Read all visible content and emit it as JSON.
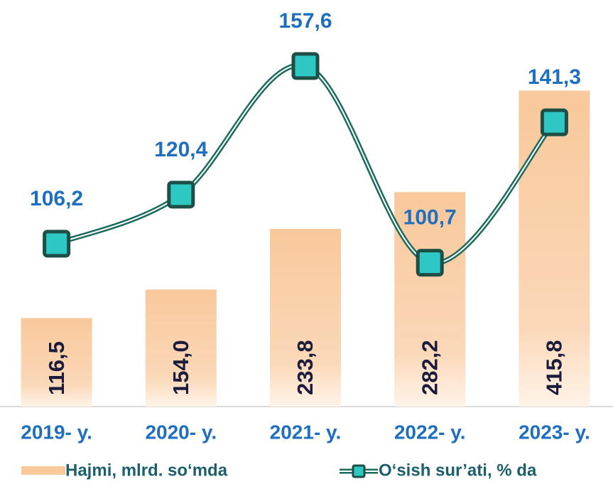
{
  "chart_data": {
    "type": "combo",
    "categories": [
      "2019- y.",
      "2020- y.",
      "2021- y.",
      "2022- y.",
      "2023- y."
    ],
    "series": [
      {
        "name": "Hajmi, mlrd. so‘mda",
        "type": "bar",
        "color": "#f9c89b",
        "values": [
          116.5,
          154.0,
          233.8,
          282.2,
          415.8
        ],
        "value_labels": [
          "116,5",
          "154,0",
          "233,8",
          "282,2",
          "415,8"
        ]
      },
      {
        "name": "O‘sish sur’ati, % da",
        "type": "line",
        "axis": "y2",
        "color": "#1d6b5f",
        "marker_color": "#2ec8c4",
        "values": [
          106.2,
          120.4,
          157.6,
          100.7,
          141.3
        ],
        "value_labels": [
          "106,2",
          "120,4",
          "157,6",
          "100,7",
          "141,3"
        ]
      }
    ],
    "ylim": [
      0,
      535
    ],
    "y2lim": [
      59.1,
      176.7
    ]
  }
}
